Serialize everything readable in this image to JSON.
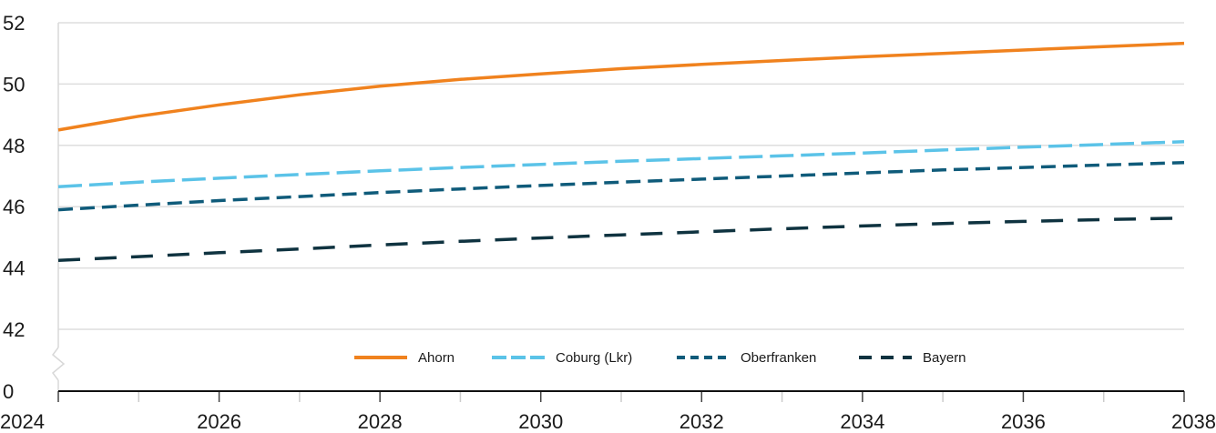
{
  "chart_data": {
    "type": "line",
    "title": "",
    "xlabel": "",
    "ylabel": "",
    "xlim": [
      2024,
      2038
    ],
    "ylim": [
      40,
      52
    ],
    "axis_break": true,
    "grid": "horizontal",
    "legend_position": "bottom-center",
    "x_ticks": [
      2024,
      2026,
      2028,
      2030,
      2032,
      2034,
      2036,
      2038
    ],
    "x_minor_ticks": [
      2025,
      2027,
      2029,
      2031,
      2033,
      2035,
      2037
    ],
    "y_ticks": [
      0,
      42,
      44,
      46,
      48,
      50,
      52
    ],
    "x": [
      2024,
      2025,
      2026,
      2027,
      2028,
      2029,
      2030,
      2031,
      2032,
      2033,
      2034,
      2035,
      2036,
      2037,
      2038
    ],
    "series": [
      {
        "name": "Ahorn",
        "color": "#f0821e",
        "dash": "solid",
        "values": [
          48.5,
          48.95,
          49.32,
          49.65,
          49.93,
          50.15,
          50.33,
          50.5,
          50.64,
          50.77,
          50.89,
          51.0,
          51.11,
          51.22,
          51.33
        ]
      },
      {
        "name": "Coburg (Lkr)",
        "color": "#5bc3e8",
        "dash": "long",
        "values": [
          46.65,
          46.8,
          46.93,
          47.05,
          47.17,
          47.28,
          47.38,
          47.48,
          47.57,
          47.66,
          47.75,
          47.85,
          47.94,
          48.03,
          48.12
        ]
      },
      {
        "name": "Oberfranken",
        "color": "#0f5b7a",
        "dash": "medium",
        "values": [
          45.9,
          46.05,
          46.2,
          46.33,
          46.46,
          46.58,
          46.69,
          46.8,
          46.9,
          47.0,
          47.1,
          47.2,
          47.28,
          47.36,
          47.44
        ]
      },
      {
        "name": "Bayern",
        "color": "#0f3340",
        "dash": "sparse",
        "values": [
          44.25,
          44.37,
          44.5,
          44.62,
          44.75,
          44.87,
          44.98,
          45.08,
          45.18,
          45.28,
          45.37,
          45.45,
          45.52,
          45.58,
          45.63
        ]
      }
    ]
  }
}
